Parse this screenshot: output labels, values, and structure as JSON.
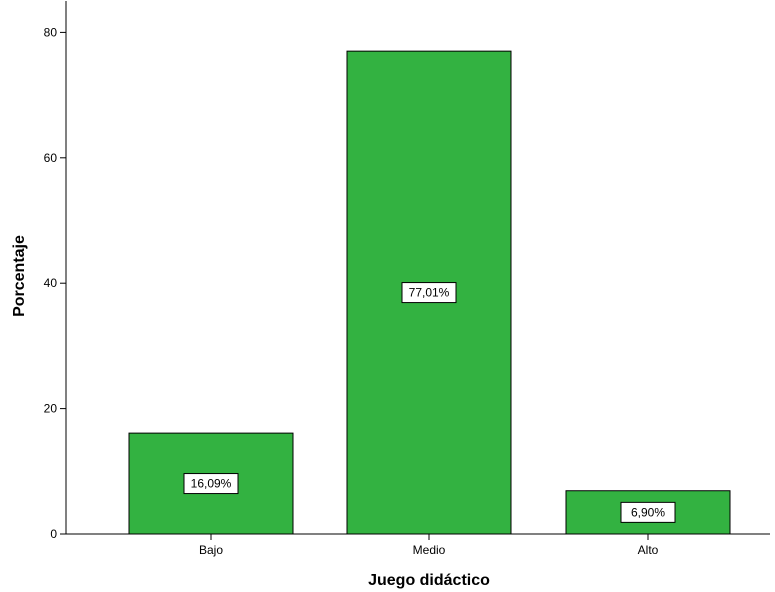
{
  "chart_data": {
    "type": "bar",
    "categories": [
      "Bajo",
      "Medio",
      "Alto"
    ],
    "values": [
      16.09,
      77.01,
      6.9
    ],
    "data_labels": [
      "16,09%",
      "77,01%",
      "6,90%"
    ],
    "xlabel": "Juego didáctico",
    "ylabel": "Porcentaje",
    "ylim": [
      0,
      85
    ],
    "yticks": [
      0,
      20,
      40,
      60,
      80
    ],
    "grid": false,
    "legend": "none",
    "bar_color": "#33b241",
    "bar_edge_color": "#000000"
  }
}
